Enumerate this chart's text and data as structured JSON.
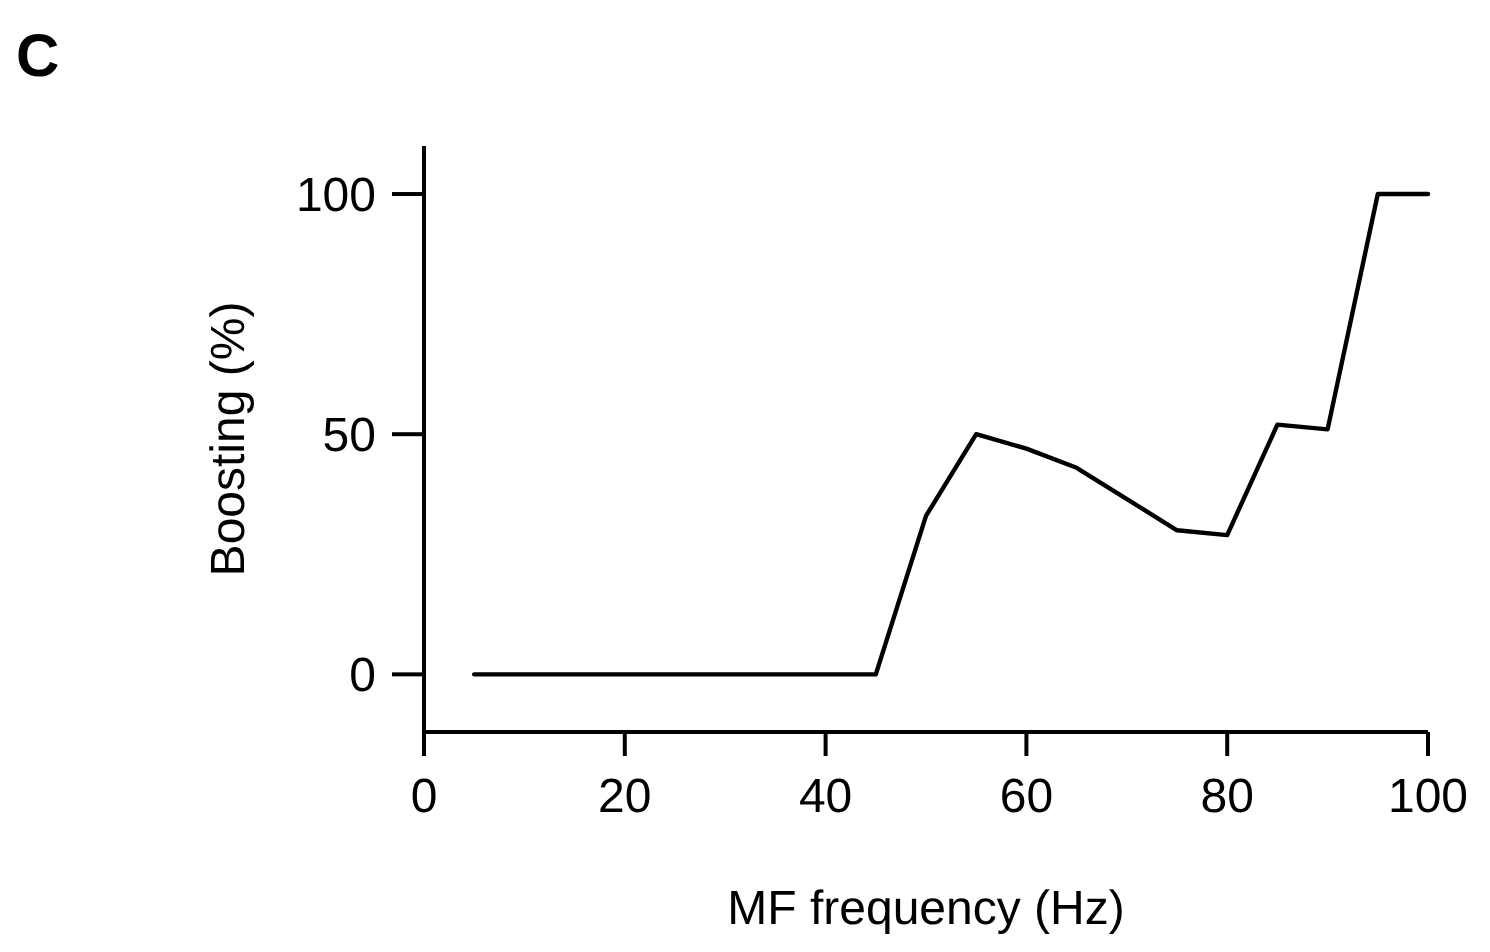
{
  "chart_data": {
    "type": "line",
    "title": "C",
    "xlabel": "MF frequency (Hz)",
    "ylabel": "Boosting (%)",
    "x": [
      5,
      45,
      50,
      55,
      60,
      65,
      75,
      80,
      85,
      90,
      95,
      100
    ],
    "series": [
      {
        "color": "#000000",
        "values": [
          0,
          0,
          33,
          50,
          47,
          43,
          30,
          29,
          52,
          51,
          100,
          100
        ]
      }
    ],
    "xlim": [
      0,
      100
    ],
    "xticks": [
      0,
      20,
      40,
      60,
      80,
      100
    ],
    "ylim": [
      -12,
      110
    ],
    "yticks": [
      0,
      50,
      100
    ],
    "grid": false,
    "marker": "none",
    "line_style": "solid"
  }
}
